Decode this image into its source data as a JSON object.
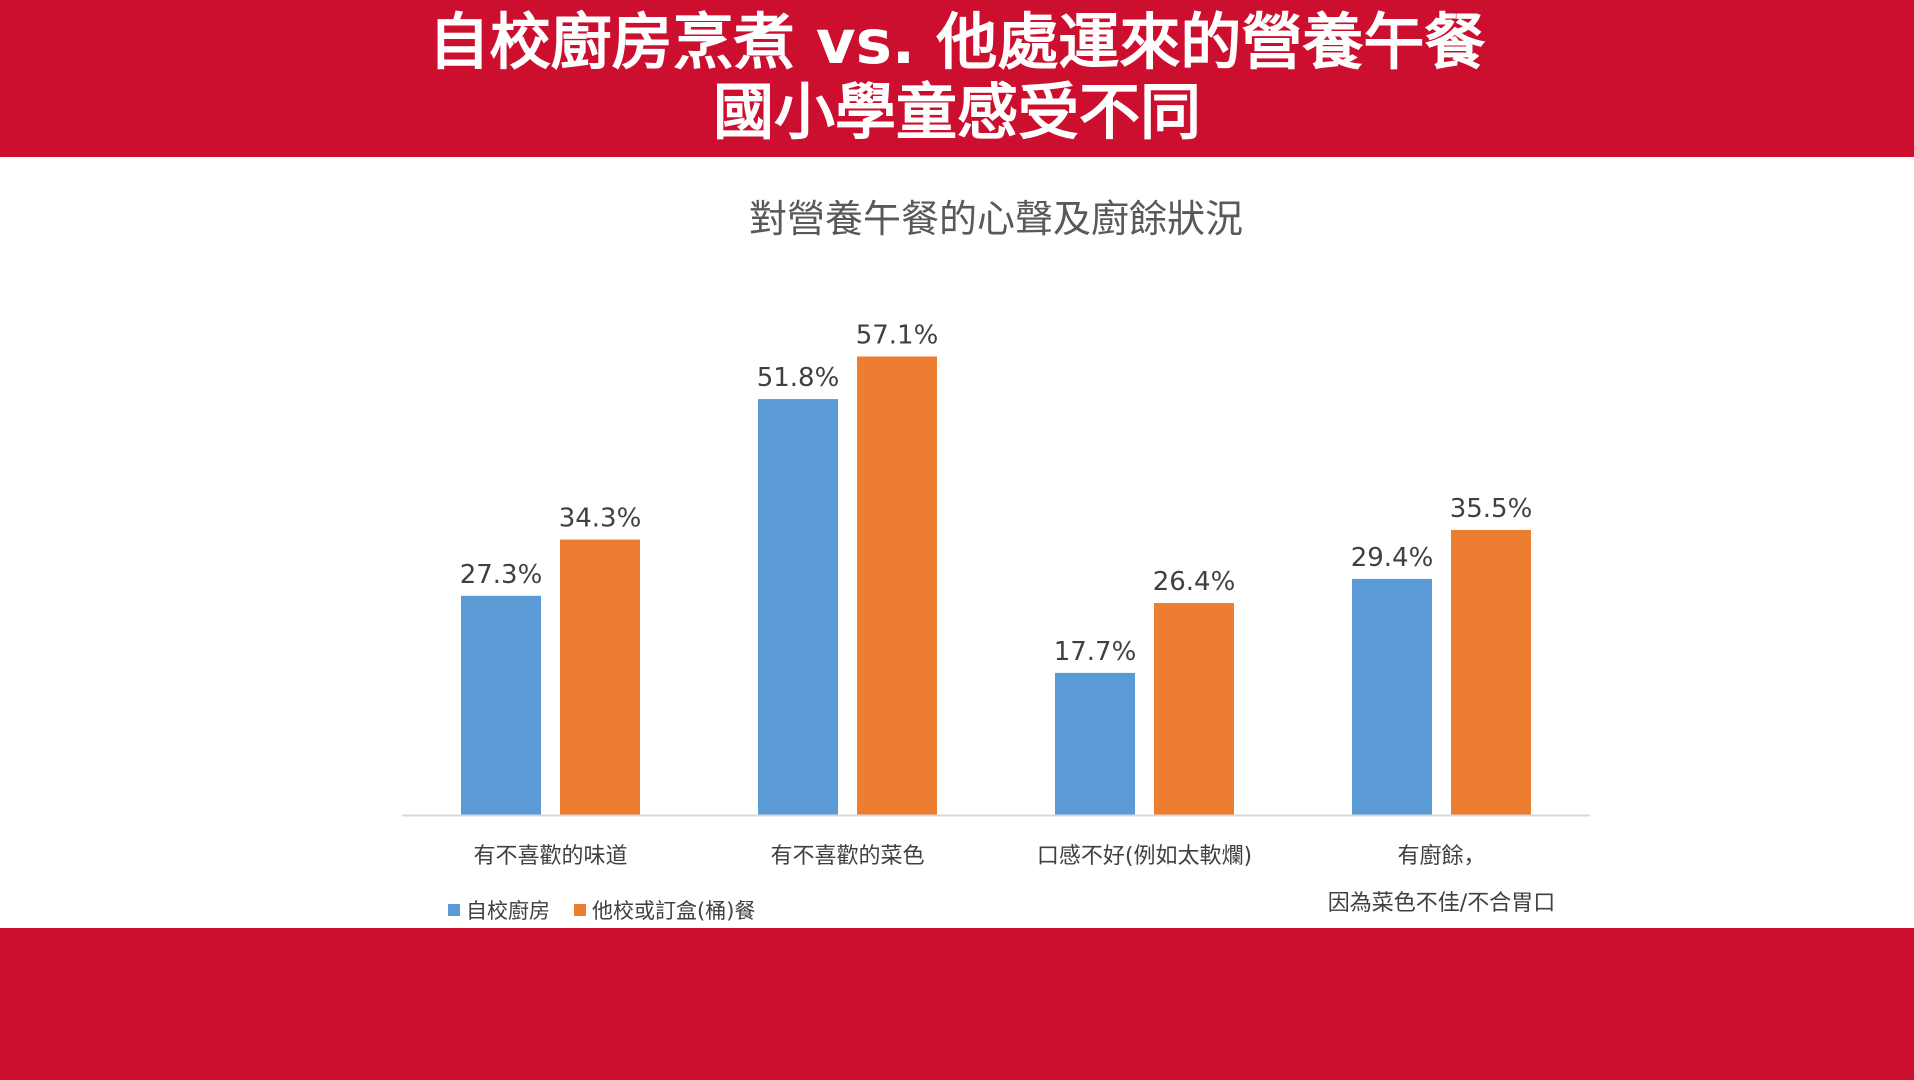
{
  "header": {
    "title_line1": "自校廚房烹煮 vs. 他處運來的營養午餐",
    "title_line2": "國小學童感受不同"
  },
  "colors": {
    "banner": "#CC0F2E",
    "series1": "#5B9BD5",
    "series2": "#ED7D31",
    "axis": "#D9D9D9",
    "text": "#404040"
  },
  "chart_data": {
    "type": "bar",
    "title": "對營養午餐的心聲及廚餘狀況",
    "xlabel": "",
    "ylabel": "",
    "categories": [
      [
        "有不喜歡的味道"
      ],
      [
        "有不喜歡的菜色"
      ],
      [
        "口感不好(例如太軟爛)"
      ],
      [
        "有廚餘，",
        "因為菜色不佳/不合胃口"
      ]
    ],
    "series": [
      {
        "name": "自校廚房",
        "values": [
          27.3,
          51.8,
          17.7,
          29.4
        ],
        "labels": [
          "27.3%",
          "51.8%",
          "17.7%",
          "29.4%"
        ]
      },
      {
        "name": "他校或訂盒(桶)餐",
        "values": [
          34.3,
          57.1,
          26.4,
          35.5
        ],
        "labels": [
          "34.3%",
          "57.1%",
          "26.4%",
          "35.5%"
        ]
      }
    ],
    "ylim": [
      0,
      60
    ],
    "grid": false,
    "legend_position": "bottom-left"
  }
}
